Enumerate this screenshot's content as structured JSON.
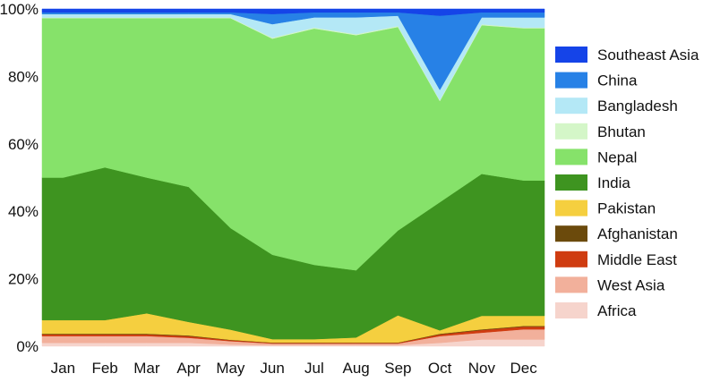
{
  "chart_data": {
    "type": "area",
    "stacked": true,
    "normalized": true,
    "x_label_ticks": [
      "Jan",
      "Feb",
      "Mar",
      "Apr",
      "May",
      "Jun",
      "Jul",
      "Aug",
      "Sep",
      "Oct",
      "Nov",
      "Dec"
    ],
    "x": [
      "Jan",
      "Feb",
      "Mar",
      "Apr",
      "May",
      "Jun",
      "Jul",
      "Aug",
      "Sep",
      "Oct",
      "Nov",
      "Dec"
    ],
    "y_ticks": [
      "0%",
      "20%",
      "40%",
      "60%",
      "80%",
      "100%"
    ],
    "ylim": [
      0,
      100
    ],
    "legend_position": "right",
    "series": [
      {
        "name": "Africa",
        "color": "#f6d4cc",
        "values": [
          1,
          1,
          1,
          1,
          0.5,
          0.3,
          0.3,
          0.3,
          0.3,
          1,
          2,
          2
        ]
      },
      {
        "name": "West Asia",
        "color": "#f2b09b",
        "values": [
          2,
          2,
          2,
          1.5,
          1,
          0.5,
          0.5,
          0.5,
          0.5,
          2,
          2,
          3
        ]
      },
      {
        "name": "Middle East",
        "color": "#cf3c10",
        "values": [
          0.5,
          0.5,
          0.5,
          0.5,
          0.3,
          0.2,
          0.2,
          0.2,
          0.2,
          0.5,
          0.8,
          0.8
        ]
      },
      {
        "name": "Afghanistan",
        "color": "#6b4a0c",
        "values": [
          0.2,
          0.2,
          0.2,
          0.2,
          0.1,
          0.1,
          0.1,
          0.1,
          0.1,
          0.2,
          0.2,
          0.2
        ]
      },
      {
        "name": "Pakistan",
        "color": "#f5cf3f",
        "values": [
          4,
          4,
          6,
          4,
          3,
          1,
          1,
          1.5,
          8,
          1,
          4,
          3
        ]
      },
      {
        "name": "India",
        "color": "#3e9420",
        "values": [
          42,
          45,
          40,
          40,
          30,
          25,
          22,
          20,
          25,
          38,
          42,
          40
        ]
      },
      {
        "name": "Nepal",
        "color": "#86e26a",
        "values": [
          47,
          44,
          47,
          50,
          62,
          64,
          70,
          70,
          60,
          30,
          44,
          45
        ]
      },
      {
        "name": "Bhutan",
        "color": "#d4f6c8",
        "values": [
          0.2,
          0.2,
          0.2,
          0.2,
          0.2,
          0.3,
          0.3,
          0.3,
          0.3,
          0.3,
          0.3,
          0.2
        ]
      },
      {
        "name": "Bangladesh",
        "color": "#b4e8f6",
        "values": [
          1,
          1,
          1,
          1,
          1,
          4,
          3,
          5,
          3,
          3,
          2,
          3
        ]
      },
      {
        "name": "China",
        "color": "#2781e6",
        "values": [
          0.5,
          0.5,
          0.5,
          0.5,
          0.5,
          3,
          1.5,
          1.5,
          1,
          22,
          1.5,
          1.5
        ]
      },
      {
        "name": "Southeast Asia",
        "color": "#1544e8",
        "values": [
          1,
          1,
          1,
          1,
          1,
          1.5,
          1,
          1,
          1,
          2,
          1,
          1
        ]
      }
    ]
  }
}
